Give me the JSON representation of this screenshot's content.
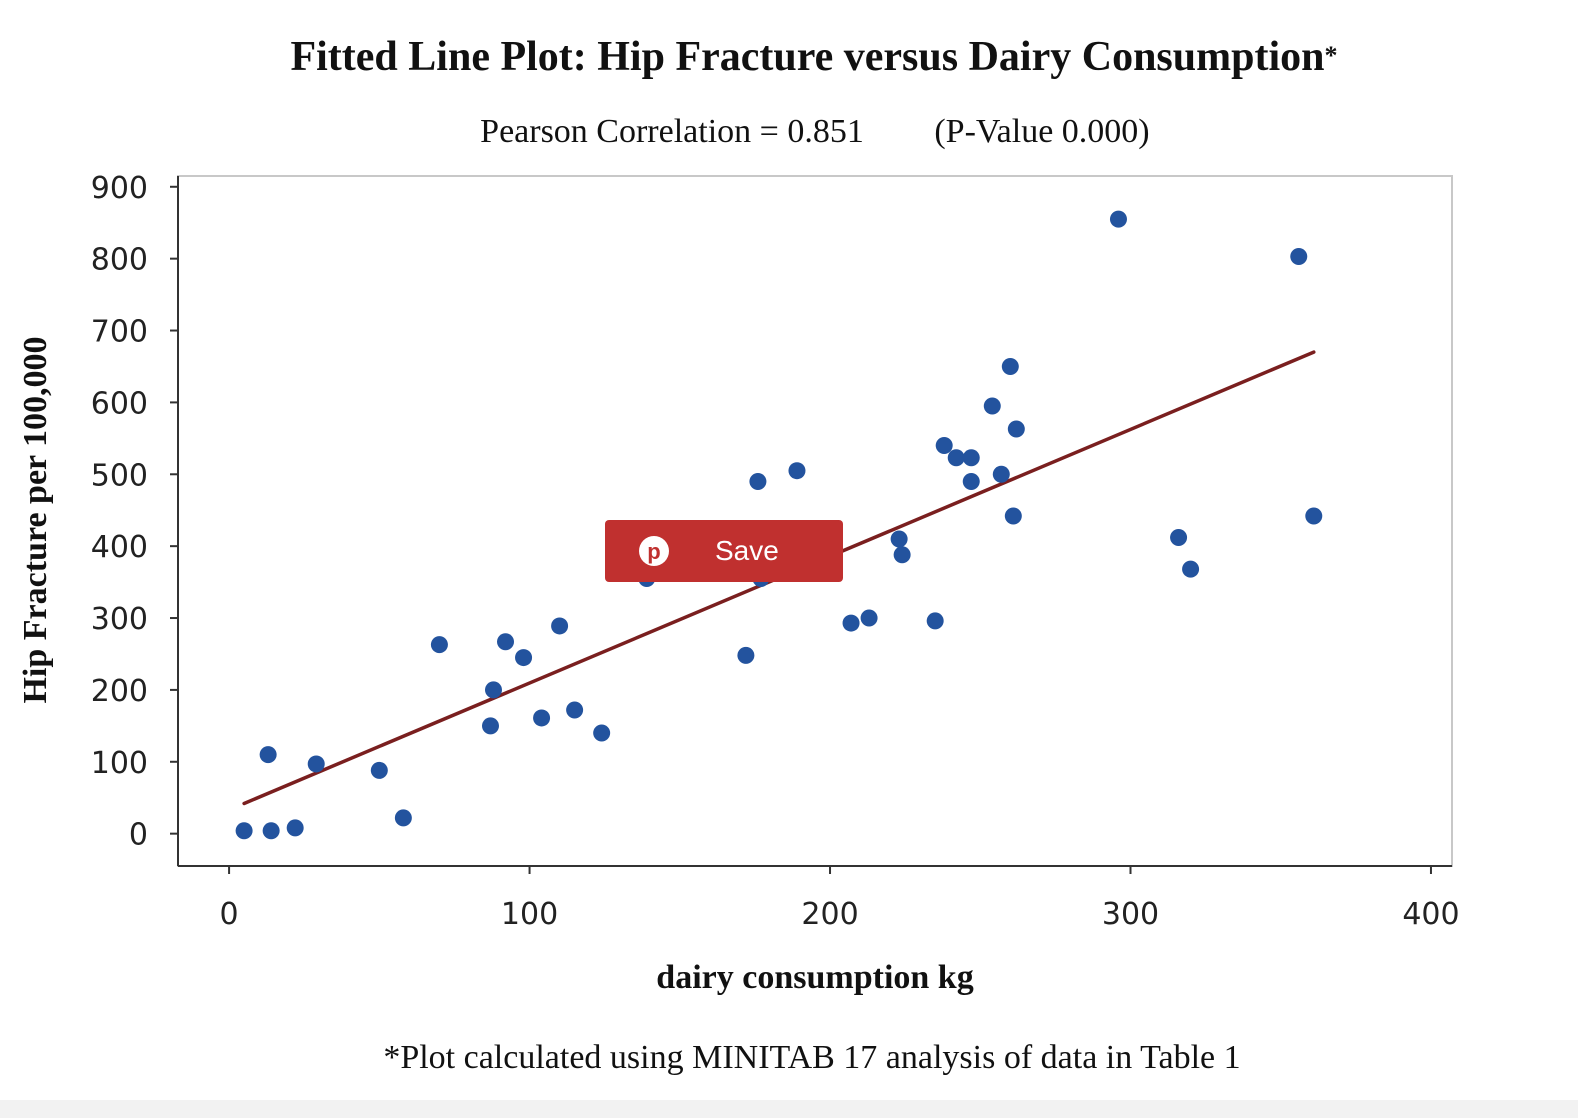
{
  "chart_data": {
    "type": "scatter",
    "title": "Fitted Line Plot: Hip Fracture versus Dairy Consumption",
    "title_mark": "*",
    "subtitle": "Pearson Correlation = 0.851",
    "subtitle_pvalue": "(P-Value 0.000)",
    "xlabel": "dairy consumption kg",
    "ylabel": "Hip Fracture per 100,000",
    "xlim": [
      -17,
      407
    ],
    "ylim": [
      -45,
      915
    ],
    "xticks": [
      0,
      100,
      200,
      300,
      400
    ],
    "yticks": [
      0,
      100,
      200,
      300,
      400,
      500,
      600,
      700,
      800,
      900
    ],
    "grid": false,
    "legend": "none",
    "points": [
      {
        "x": 5,
        "y": 4
      },
      {
        "x": 13,
        "y": 110
      },
      {
        "x": 14,
        "y": 4
      },
      {
        "x": 22,
        "y": 8
      },
      {
        "x": 29,
        "y": 97
      },
      {
        "x": 50,
        "y": 88
      },
      {
        "x": 58,
        "y": 22
      },
      {
        "x": 70,
        "y": 263
      },
      {
        "x": 87,
        "y": 150
      },
      {
        "x": 88,
        "y": 200
      },
      {
        "x": 92,
        "y": 267
      },
      {
        "x": 98,
        "y": 245
      },
      {
        "x": 104,
        "y": 161
      },
      {
        "x": 110,
        "y": 289
      },
      {
        "x": 115,
        "y": 172
      },
      {
        "x": 124,
        "y": 140
      },
      {
        "x": 139,
        "y": 355
      },
      {
        "x": 172,
        "y": 248
      },
      {
        "x": 176,
        "y": 490
      },
      {
        "x": 177,
        "y": 355
      },
      {
        "x": 189,
        "y": 505
      },
      {
        "x": 207,
        "y": 293
      },
      {
        "x": 213,
        "y": 300
      },
      {
        "x": 223,
        "y": 410
      },
      {
        "x": 224,
        "y": 388
      },
      {
        "x": 235,
        "y": 296
      },
      {
        "x": 238,
        "y": 540
      },
      {
        "x": 242,
        "y": 523
      },
      {
        "x": 247,
        "y": 523
      },
      {
        "x": 247,
        "y": 490
      },
      {
        "x": 254,
        "y": 595
      },
      {
        "x": 257,
        "y": 500
      },
      {
        "x": 260,
        "y": 650
      },
      {
        "x": 261,
        "y": 442
      },
      {
        "x": 262,
        "y": 563
      },
      {
        "x": 296,
        "y": 855
      },
      {
        "x": 316,
        "y": 412
      },
      {
        "x": 320,
        "y": 368
      },
      {
        "x": 356,
        "y": 803
      },
      {
        "x": 361,
        "y": 442
      }
    ],
    "fit_line": {
      "x": [
        5,
        361
      ],
      "y": [
        42,
        670
      ]
    },
    "colors": {
      "points": "#23539e",
      "fit_line": "#7a1f1f",
      "axes": "#333333",
      "frame": "#c8c8c8"
    }
  },
  "save_button": {
    "label": "Save",
    "icon": "pinterest-icon",
    "icon_glyph": "p",
    "color": "#c0302f"
  },
  "footnote": "*Plot calculated using MINITAB 17 analysis of data in Table 1"
}
